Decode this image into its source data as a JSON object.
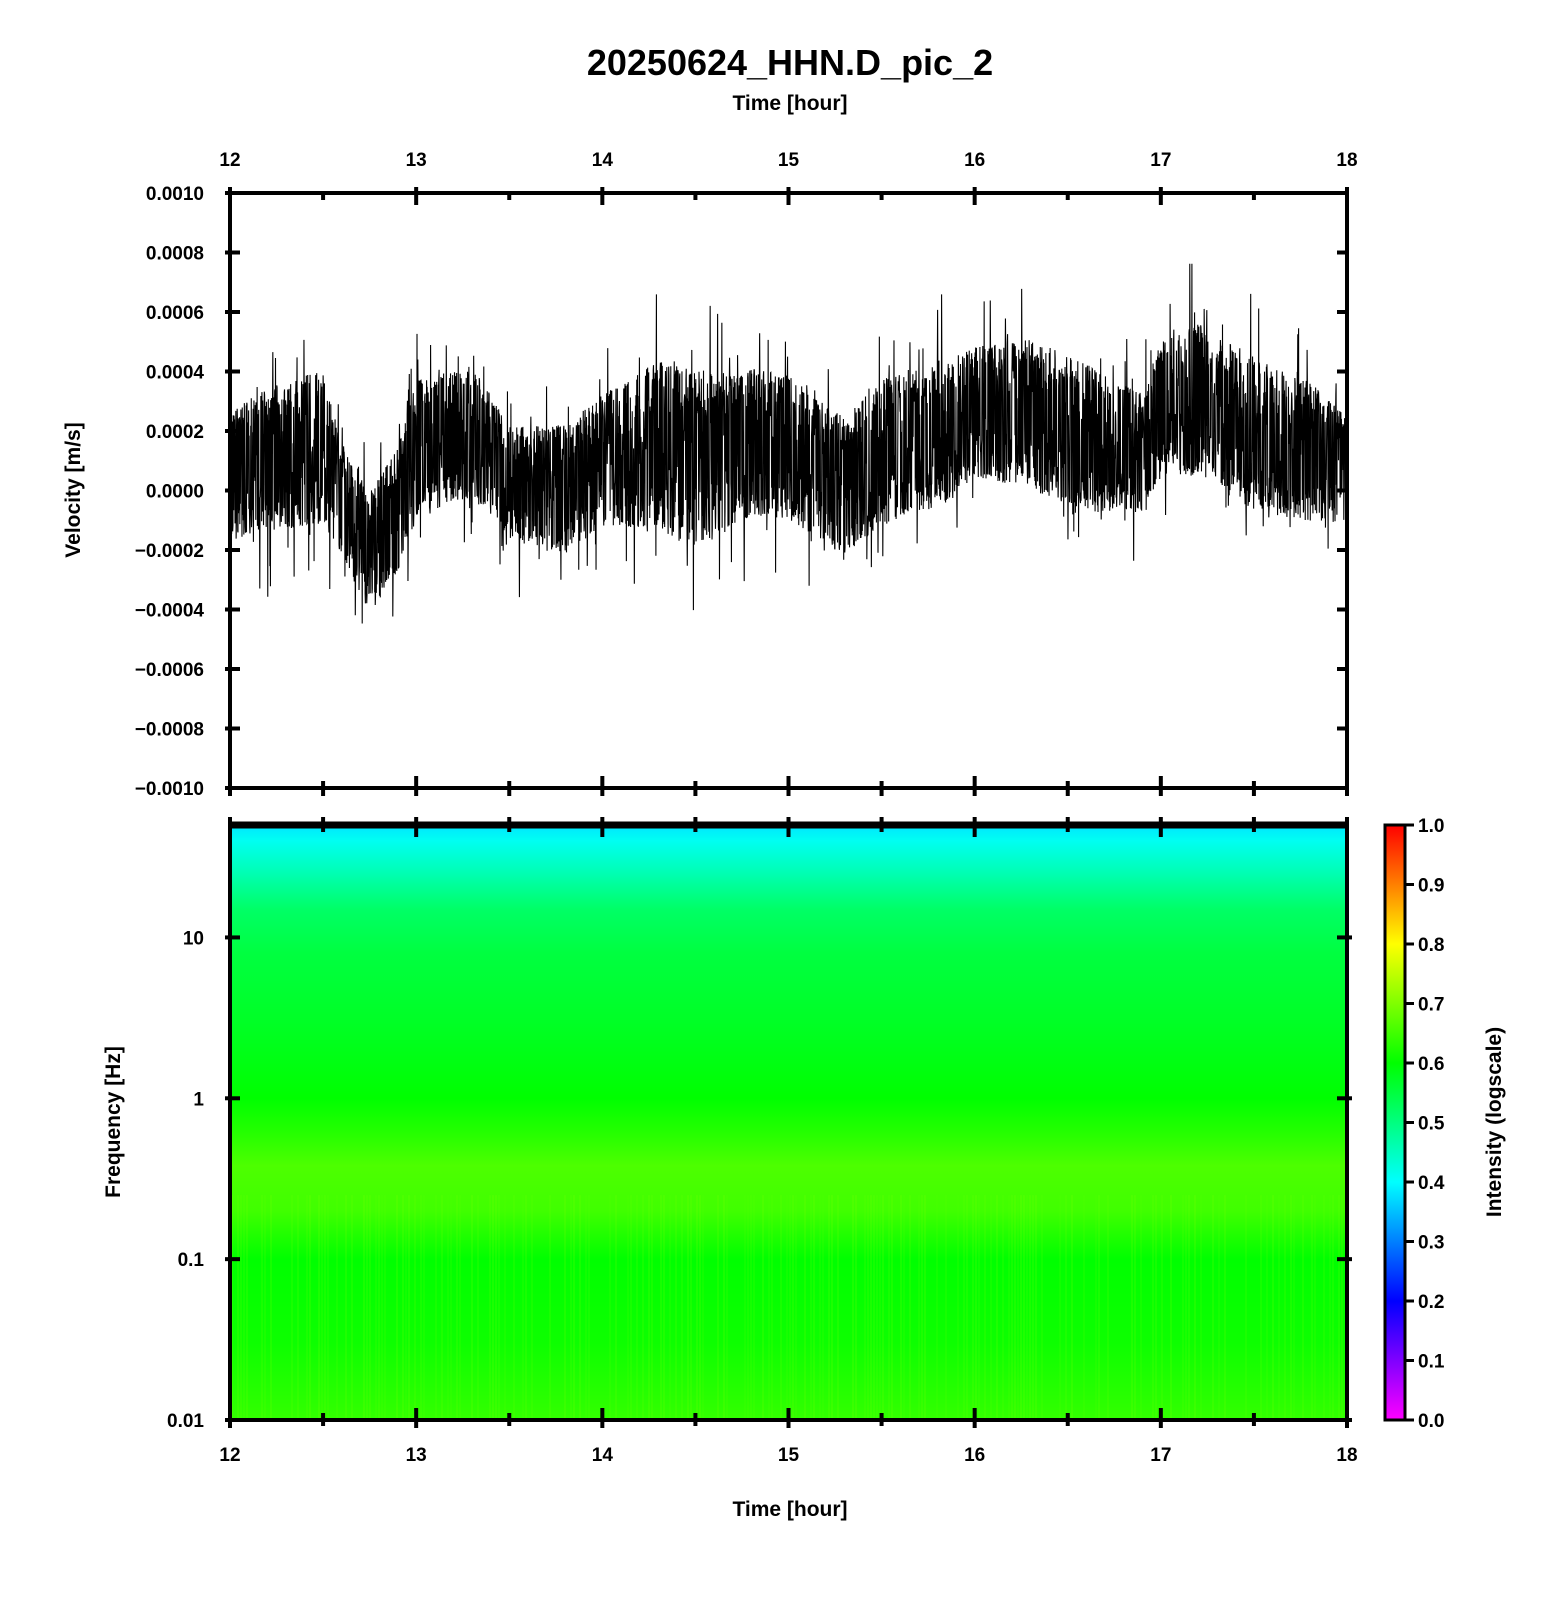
{
  "chart_data": [
    {
      "type": "line",
      "title": "20250624_HHN.D_pic_2",
      "top_xlabel": "Time [hour]",
      "ylabel": "Velocity [m/s]",
      "xlim": [
        12,
        18
      ],
      "ylim": [
        -0.001,
        0.001
      ],
      "x_ticks": [
        "12",
        "13",
        "14",
        "15",
        "16",
        "17",
        "18"
      ],
      "y_ticks": [
        "0.0010",
        "0.0008",
        "0.0006",
        "0.0004",
        "0.0002",
        "0.0000",
        "−0.0002",
        "−0.0004",
        "−0.0006",
        "−0.0008",
        "−0.0010"
      ],
      "grid": false,
      "series": [
        {
          "color": "#000000",
          "envelope": {
            "x": [
              12.0,
              12.25,
              12.5,
              12.6,
              12.75,
              12.9,
              13.0,
              13.3,
              13.5,
              13.8,
              14.0,
              14.3,
              14.5,
              14.8,
              15.0,
              15.3,
              15.5,
              15.8,
              16.0,
              16.3,
              16.6,
              16.9,
              17.0,
              17.2,
              17.5,
              17.8,
              18.0
            ],
            "center": [
              0.00012,
              0.00012,
              0.00012,
              2e-05,
              -0.0002,
              -5e-05,
              0.00015,
              0.0002,
              5e-05,
              0.0,
              0.0001,
              0.00015,
              0.0001,
              0.00018,
              0.00015,
              5e-05,
              0.0001,
              0.00012,
              0.00022,
              0.00025,
              0.00015,
              0.00012,
              0.00025,
              0.00028,
              0.00015,
              0.00014,
              0.00012
            ],
            "upper": [
              0.0004,
              0.00055,
              0.00065,
              0.00025,
              0.00015,
              0.0003,
              0.00055,
              0.0006,
              0.00035,
              0.0004,
              0.0005,
              0.00067,
              0.00065,
              0.0006,
              0.00058,
              0.0004,
              0.0006,
              0.0007,
              0.0007,
              0.00072,
              0.00065,
              0.0005,
              0.0007,
              0.00079,
              0.0007,
              0.00055,
              0.00035
            ],
            "lower": [
              -0.0004,
              -0.00035,
              -0.0003,
              -0.0004,
              -0.00059,
              -0.00045,
              -0.0003,
              -0.0002,
              -0.00035,
              -0.0004,
              -0.0003,
              -0.00035,
              -0.00046,
              -0.0003,
              -0.0003,
              -0.00044,
              -0.0003,
              -0.0002,
              -0.0001,
              -0.0002,
              -0.00025,
              -0.00025,
              -0.0001,
              -0.00015,
              -0.00025,
              -0.0003,
              -0.0003
            ]
          }
        }
      ]
    },
    {
      "type": "heatmap",
      "xlabel": "Time [hour]",
      "ylabel": "Frequency [Hz]",
      "xlim": [
        12,
        18
      ],
      "ylim": [
        0.01,
        50
      ],
      "yscale": "log",
      "x_ticks": [
        "12",
        "13",
        "14",
        "15",
        "16",
        "17",
        "18"
      ],
      "y_ticks": [
        {
          "value": 10,
          "label": "10"
        },
        {
          "value": 1,
          "label": "1"
        },
        {
          "value": 0.1,
          "label": "0.1"
        },
        {
          "value": 0.01,
          "label": "0.01"
        }
      ],
      "frequency_profile": {
        "freq": [
          50,
          40,
          25,
          15,
          8,
          3,
          1,
          0.6,
          0.38,
          0.2,
          0.1,
          0.03,
          0.01
        ],
        "intensity": [
          0.38,
          0.41,
          0.46,
          0.52,
          0.55,
          0.57,
          0.6,
          0.63,
          0.66,
          0.65,
          0.6,
          0.61,
          0.64
        ]
      },
      "colorbar": {
        "label": "Intensity (logscale)",
        "range": [
          0.0,
          1.0
        ],
        "ticks": [
          "1.0",
          "0.9",
          "0.8",
          "0.7",
          "0.6",
          "0.5",
          "0.4",
          "0.3",
          "0.2",
          "0.1",
          "0.0"
        ],
        "colors": [
          "#ff00ff",
          "#0000ff",
          "#00ffff",
          "#00ff00",
          "#ffff00",
          "#ff0000"
        ]
      }
    }
  ]
}
